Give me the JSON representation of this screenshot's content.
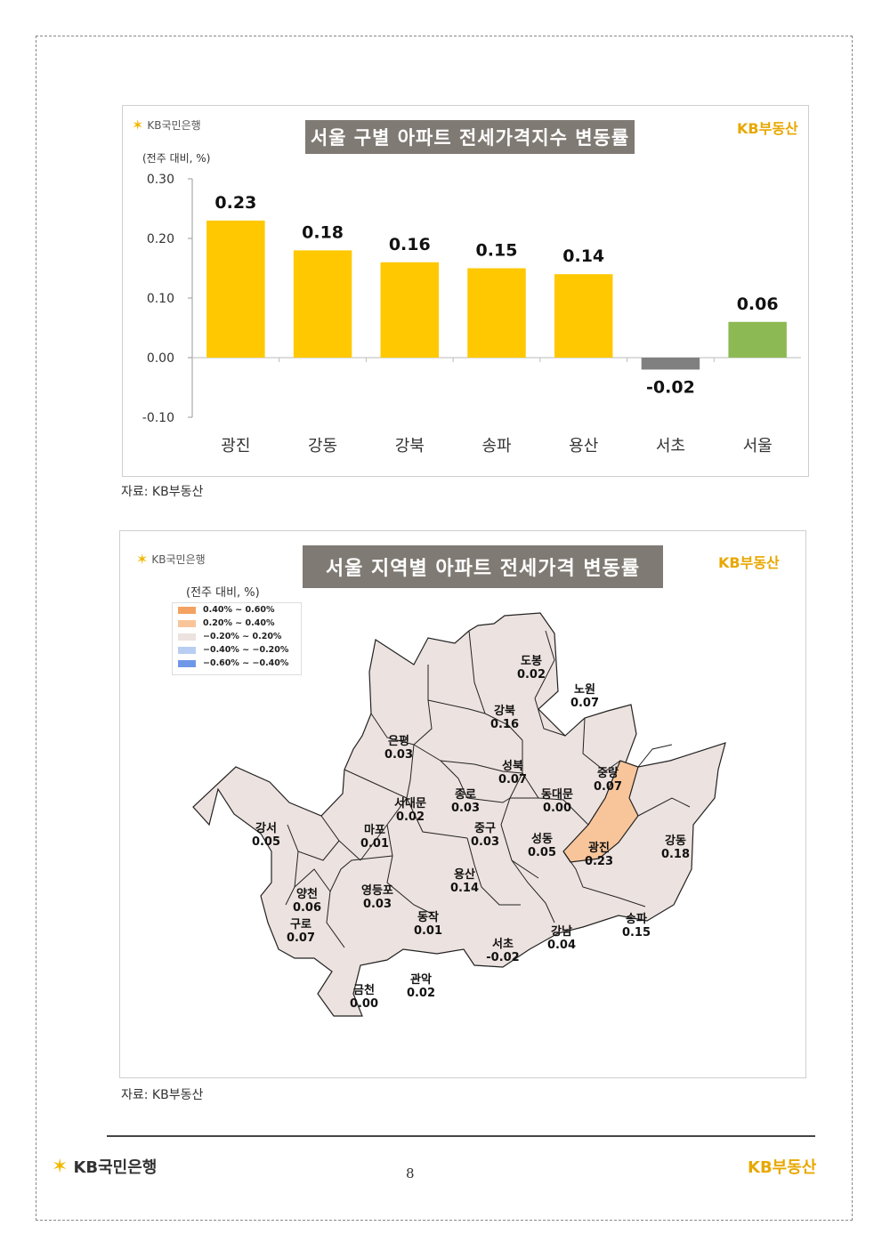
{
  "chart1": {
    "brand_left": "KB국민은행",
    "brand_right": "KB부동산",
    "title": "서울 구별 아파트 전세가격지수 변동률",
    "unit": "(전주 대비, %)",
    "source": "자료: KB부동산"
  },
  "chart_data": [
    {
      "type": "bar",
      "title": "서울 구별 아파트 전세가격지수 변동률",
      "ylabel": "(전주 대비, %)",
      "categories": [
        "광진",
        "강동",
        "강북",
        "송파",
        "용산",
        "서초",
        "서울"
      ],
      "values": [
        0.23,
        0.18,
        0.16,
        0.15,
        0.14,
        -0.02,
        0.06
      ],
      "value_labels": [
        "0.23",
        "0.18",
        "0.16",
        "0.15",
        "0.14",
        "-0.02",
        "0.06"
      ],
      "ylim": [
        -0.1,
        0.3
      ],
      "yticks": [
        "0.30",
        "0.20",
        "0.10",
        "0.00",
        "-0.10"
      ],
      "ytick_values": [
        0.3,
        0.2,
        0.1,
        0.0,
        -0.1
      ],
      "colors": {
        "positive": "#ffc800",
        "negative": "#808080",
        "total": "#8db954"
      },
      "grid": false
    }
  ],
  "map": {
    "brand_left": "KB국민은행",
    "brand_right": "KB부동산",
    "title": "서울 지역별 아파트 전세가격 변동률",
    "unit": "(전주 대비, %)",
    "source": "자료: KB부동산",
    "legend": [
      {
        "label": "0.40% ~ 0.60%",
        "color": "#f4a261"
      },
      {
        "label": "0.20% ~ 0.40%",
        "color": "#f8c59a"
      },
      {
        "label": "−0.20% ~ 0.20%",
        "color": "#ece2df"
      },
      {
        "label": "−0.40% ~ −0.20%",
        "color": "#b9cdf2"
      },
      {
        "label": "−0.60% ~ −0.40%",
        "color": "#6f97e8"
      }
    ],
    "districts": [
      {
        "name": "도봉",
        "value": "0.02"
      },
      {
        "name": "노원",
        "value": "0.07"
      },
      {
        "name": "강북",
        "value": "0.16"
      },
      {
        "name": "은평",
        "value": "0.03"
      },
      {
        "name": "성북",
        "value": "0.07"
      },
      {
        "name": "중랑",
        "value": "0.07"
      },
      {
        "name": "종로",
        "value": "0.03"
      },
      {
        "name": "서대문",
        "value": "0.02"
      },
      {
        "name": "동대문",
        "value": "0.00"
      },
      {
        "name": "강서",
        "value": "0.05"
      },
      {
        "name": "마포",
        "value": "0.01"
      },
      {
        "name": "중구",
        "value": "0.03"
      },
      {
        "name": "성동",
        "value": "0.05"
      },
      {
        "name": "광진",
        "value": "0.23"
      },
      {
        "name": "강동",
        "value": "0.18"
      },
      {
        "name": "용산",
        "value": "0.14"
      },
      {
        "name": "양천",
        "value": "0.06"
      },
      {
        "name": "영등포",
        "value": "0.03"
      },
      {
        "name": "동작",
        "value": "0.01"
      },
      {
        "name": "송파",
        "value": "0.15"
      },
      {
        "name": "구로",
        "value": "0.07"
      },
      {
        "name": "강남",
        "value": "0.04"
      },
      {
        "name": "서초",
        "value": "-0.02"
      },
      {
        "name": "관악",
        "value": "0.02"
      },
      {
        "name": "금천",
        "value": "0.00"
      }
    ],
    "fill_default": "#ece2df",
    "fill_highlight": "#f8c59a",
    "stroke": "#222222"
  },
  "footer": {
    "brand_left": "KB국민은행",
    "brand_right": "KB부동산",
    "page_number": "8"
  }
}
